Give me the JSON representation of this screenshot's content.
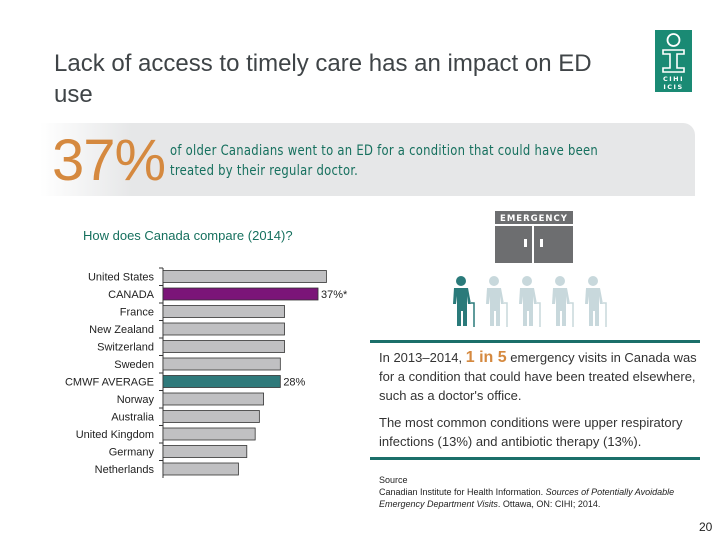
{
  "title": "Lack of access to timely care has an impact on ED use",
  "logo": {
    "text_top": "CIHI",
    "text_bottom": "ICIS",
    "color": "#1a8a74"
  },
  "banner": {
    "stat": "37%",
    "text": "of older Canadians went to an ED for a condition that could have been treated by their regular doctor."
  },
  "question": "How does Canada compare (2014)?",
  "chart_data": {
    "type": "bar",
    "orientation": "horizontal",
    "categories": [
      "United States",
      "CANADA",
      "France",
      "New Zealand",
      "Switzerland",
      "Sweden",
      "CMWF AVERAGE",
      "Norway",
      "Australia",
      "United Kingdom",
      "Germany",
      "Netherlands"
    ],
    "values": [
      39,
      37,
      29,
      29,
      29,
      28,
      28,
      24,
      23,
      22,
      20,
      18
    ],
    "data_labels": {
      "CANADA": "37%*",
      "CMWF AVERAGE": "28%"
    },
    "colors": {
      "default": "#c0c0c2",
      "CANADA": "#7b1578",
      "CMWF AVERAGE": "#2f7a7b"
    },
    "xlim": [
      0,
      40
    ],
    "grid": false
  },
  "infographic": {
    "sign": "EMERGENCY",
    "people_total": 5,
    "people_highlighted": 1,
    "highlight_color": "#2a7a7a",
    "muted_color": "#c8d8dc"
  },
  "notes": {
    "p1_pre": "In 2013–2014, ",
    "p1_hl": "1 in 5",
    "p1_post": " emergency visits in Canada was for a condition that could have been treated elsewhere, such as a doctor's office.",
    "p2": "The most common conditions were upper respiratory infections (13%) and antibiotic therapy (13%)."
  },
  "source": {
    "label": "Source",
    "pre": "Canadian Institute for Health Information. ",
    "italic": "Sources of Potentially Avoidable Emergency Department Visits",
    "post": ". Ottawa, ON: CIHI; 2014."
  },
  "page_number": "20"
}
